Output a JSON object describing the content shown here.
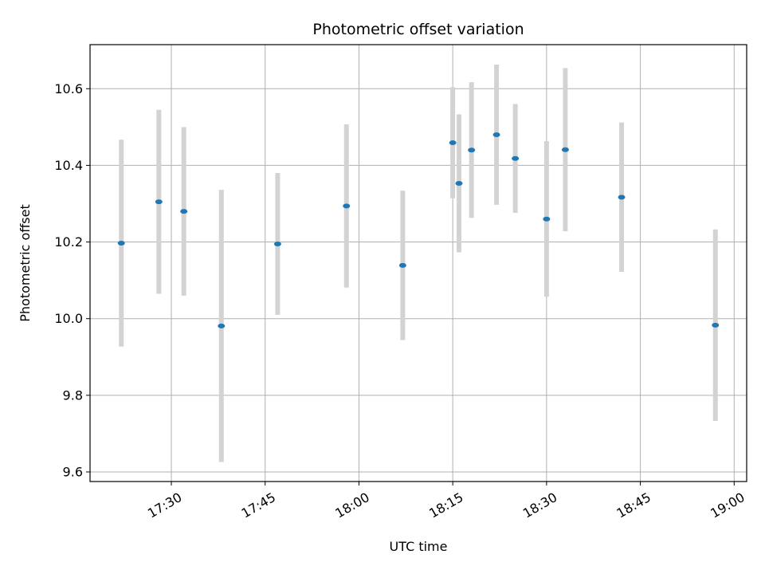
{
  "chart_data": {
    "type": "scatter",
    "title": "Photometric offset variation",
    "xlabel": "UTC time",
    "ylabel": "Photometric offset",
    "x_tick_labels": [
      "17:30",
      "17:45",
      "18:00",
      "18:15",
      "18:30",
      "18:45",
      "19:00"
    ],
    "y_tick_labels": [
      "9.6",
      "9.8",
      "10.0",
      "10.2",
      "10.4",
      "10.6"
    ],
    "xlim": [
      "17:17:00",
      "19:02:00"
    ],
    "ylim": [
      9.575,
      10.715
    ],
    "grid": true,
    "colors": {
      "marker": "#1f77b4",
      "errorbar": "#d3d3d3",
      "grid": "#b0b0b0"
    },
    "points": [
      {
        "x": "17:22:00",
        "y": 10.197,
        "yerr": 0.27
      },
      {
        "x": "17:28:00",
        "y": 10.305,
        "yerr": 0.24
      },
      {
        "x": "17:32:00",
        "y": 10.28,
        "yerr": 0.22
      },
      {
        "x": "17:38:00",
        "y": 9.981,
        "yerr": 0.355
      },
      {
        "x": "17:47:00",
        "y": 10.195,
        "yerr": 0.185
      },
      {
        "x": "17:58:00",
        "y": 10.294,
        "yerr": 0.213
      },
      {
        "x": "18:07:00",
        "y": 10.139,
        "yerr": 0.195
      },
      {
        "x": "18:15:00",
        "y": 10.459,
        "yerr": 0.145
      },
      {
        "x": "18:16:00",
        "y": 10.353,
        "yerr": 0.18
      },
      {
        "x": "18:18:00",
        "y": 10.44,
        "yerr": 0.177
      },
      {
        "x": "18:22:00",
        "y": 10.48,
        "yerr": 0.183
      },
      {
        "x": "18:25:00",
        "y": 10.418,
        "yerr": 0.142
      },
      {
        "x": "18:30:00",
        "y": 10.26,
        "yerr": 0.203
      },
      {
        "x": "18:33:00",
        "y": 10.441,
        "yerr": 0.213
      },
      {
        "x": "18:42:00",
        "y": 10.317,
        "yerr": 0.195
      },
      {
        "x": "18:57:00",
        "y": 9.983,
        "yerr": 0.25
      }
    ]
  }
}
